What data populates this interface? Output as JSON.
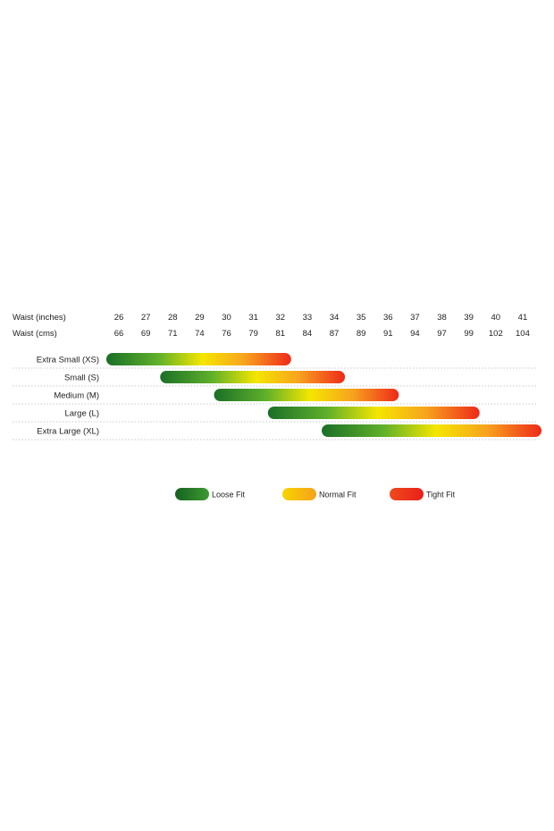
{
  "chart_data": {
    "type": "range-bar",
    "row_headers": {
      "inches": "Waist (inches)",
      "cms": "Waist (cms)"
    },
    "columns": {
      "inches": [
        "26",
        "27",
        "28",
        "29",
        "30",
        "31",
        "32",
        "33",
        "34",
        "35",
        "36",
        "37",
        "38",
        "39",
        "40",
        "41"
      ],
      "cms": [
        "66",
        "69",
        "71",
        "74",
        "76",
        "79",
        "81",
        "84",
        "87",
        "89",
        "91",
        "94",
        "97",
        "99",
        "102",
        "104"
      ]
    },
    "sizes": [
      {
        "label": "Extra Small (XS)",
        "start_in": 26,
        "end_in": 32
      },
      {
        "label": "Small (S)",
        "start_in": 28,
        "end_in": 34
      },
      {
        "label": "Medium (M)",
        "start_in": 30,
        "end_in": 36
      },
      {
        "label": "Large (L)",
        "start_in": 32,
        "end_in": 39
      },
      {
        "label": "Extra Large (XL)",
        "start_in": 34,
        "end_in": 41.3
      }
    ],
    "legend": [
      {
        "label": "Loose Fit",
        "color": "#1f7a2b"
      },
      {
        "label": "Normal Fit",
        "color": "#ffcc00"
      },
      {
        "label": "Tight Fit",
        "color": "#ee2a1a"
      }
    ],
    "gradient_colors": [
      "#1a6f27",
      "#5fb02a",
      "#f4e600",
      "#f7a31d",
      "#ee2a1a"
    ]
  }
}
